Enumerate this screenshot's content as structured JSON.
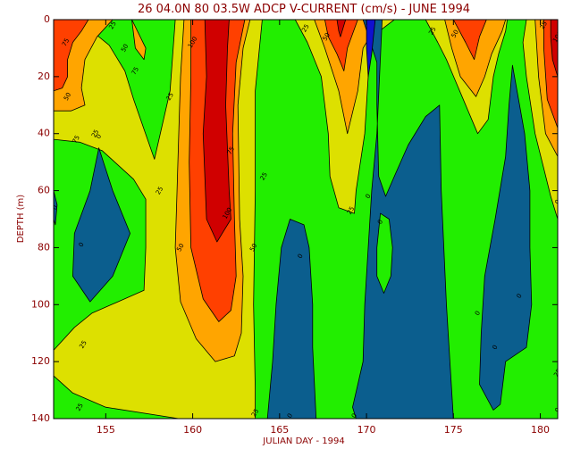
{
  "chart_data": {
    "type": "heatmap",
    "title": "26 04.0N 80 03.5W ADCP V-CURRENT (cm/s) - JUNE 1994",
    "xlabel": "JULIAN DAY - 1994",
    "ylabel": "DEPTH (m)",
    "xlim": [
      152,
      181
    ],
    "ylim": [
      140,
      0
    ],
    "x_ticks": [
      155,
      160,
      165,
      170,
      175,
      180
    ],
    "y_ticks": [
      0,
      20,
      40,
      60,
      80,
      100,
      120,
      140
    ],
    "grid": false,
    "contour_levels": [
      0,
      25,
      50,
      75,
      100
    ],
    "level_colors": {
      "below_0": "#0b5e8e",
      "0_25": "#22ee00",
      "25_50": "#dde000",
      "50_75": "#ffa500",
      "75_100": "#ff4000",
      "above_100": "#d00000",
      "strong_negative": "#1010d0"
    },
    "contour_labels": [
      {
        "text": "75",
        "x": 152.7,
        "y": 8
      },
      {
        "text": "50",
        "x": 152.8,
        "y": 27
      },
      {
        "text": "50",
        "x": 156.1,
        "y": 10
      },
      {
        "text": "25",
        "x": 155.4,
        "y": 2
      },
      {
        "text": "75",
        "x": 156.7,
        "y": 18
      },
      {
        "text": "25",
        "x": 158.7,
        "y": 27
      },
      {
        "text": "25",
        "x": 154.4,
        "y": 40
      },
      {
        "text": "75",
        "x": 153.3,
        "y": 42
      },
      {
        "text": "0",
        "x": 154.6,
        "y": 41
      },
      {
        "text": "25",
        "x": 158.1,
        "y": 60
      },
      {
        "text": "50",
        "x": 159.3,
        "y": 80
      },
      {
        "text": "0",
        "x": 153.6,
        "y": 79
      },
      {
        "text": "0",
        "x": 152.1,
        "y": 66
      },
      {
        "text": "25",
        "x": 153.7,
        "y": 114
      },
      {
        "text": "25",
        "x": 153.5,
        "y": 136
      },
      {
        "text": "100",
        "x": 160.0,
        "y": 8
      },
      {
        "text": "75",
        "x": 162.2,
        "y": 46
      },
      {
        "text": "100",
        "x": 162.0,
        "y": 68
      },
      {
        "text": "50",
        "x": 163.5,
        "y": 80
      },
      {
        "text": "25",
        "x": 164.1,
        "y": 55
      },
      {
        "text": "25",
        "x": 163.6,
        "y": 138
      },
      {
        "text": "0",
        "x": 165.6,
        "y": 139
      },
      {
        "text": "0",
        "x": 166.2,
        "y": 83
      },
      {
        "text": "50",
        "x": 167.7,
        "y": 6
      },
      {
        "text": "25",
        "x": 166.5,
        "y": 3
      },
      {
        "text": "25",
        "x": 169.1,
        "y": 67
      },
      {
        "text": "0",
        "x": 170.1,
        "y": 62
      },
      {
        "text": "0",
        "x": 170.8,
        "y": 71
      },
      {
        "text": "0",
        "x": 169.3,
        "y": 139
      },
      {
        "text": "25",
        "x": 173.8,
        "y": 4
      },
      {
        "text": "50",
        "x": 175.1,
        "y": 5
      },
      {
        "text": "0",
        "x": 176.4,
        "y": 103
      },
      {
        "text": "0",
        "x": 178.8,
        "y": 97
      },
      {
        "text": "0",
        "x": 177.4,
        "y": 115
      },
      {
        "text": "25",
        "x": 180.2,
        "y": 2
      },
      {
        "text": "100",
        "x": 181.0,
        "y": 6
      },
      {
        "text": "0",
        "x": 181.0,
        "y": 64
      },
      {
        "text": "25",
        "x": 181.0,
        "y": 124
      },
      {
        "text": "0",
        "x": 181.0,
        "y": 137
      }
    ],
    "regions": [
      {
        "level": "0_25",
        "points": [
          [
            152,
            0
          ],
          [
            181,
            0
          ],
          [
            181,
            140
          ],
          [
            152,
            140
          ]
        ]
      },
      {
        "level": "25_50",
        "points": [
          [
            152,
            0
          ],
          [
            153.4,
            0
          ],
          [
            155.2,
            9
          ],
          [
            156.1,
            18
          ],
          [
            156.6,
            28
          ],
          [
            157.8,
            49
          ],
          [
            158.7,
            25
          ],
          [
            159,
            0
          ],
          [
            164,
            0
          ],
          [
            163.6,
            25
          ],
          [
            163.6,
            60
          ],
          [
            163.5,
            100
          ],
          [
            163.6,
            130
          ],
          [
            163.6,
            140
          ],
          [
            159.2,
            140
          ],
          [
            155,
            136
          ],
          [
            153.1,
            131
          ],
          [
            152,
            125
          ],
          [
            152,
            116
          ],
          [
            153.2,
            108
          ],
          [
            154.2,
            103
          ],
          [
            155.7,
            99
          ],
          [
            157.2,
            95
          ],
          [
            157.3,
            80
          ],
          [
            157.3,
            63
          ],
          [
            156.6,
            56
          ],
          [
            154.8,
            46
          ],
          [
            153.5,
            43
          ],
          [
            152,
            42
          ]
        ]
      },
      {
        "level": "25_50",
        "points": [
          [
            165.9,
            0
          ],
          [
            171.6,
            0
          ],
          [
            170.1,
            7
          ],
          [
            170.1,
            20
          ],
          [
            169.9,
            40
          ],
          [
            169.4,
            60
          ],
          [
            169.3,
            68
          ],
          [
            168.4,
            66
          ],
          [
            167.9,
            55
          ],
          [
            167.8,
            40
          ],
          [
            167.4,
            20
          ],
          [
            166.6,
            8
          ]
        ]
      },
      {
        "level": "25_50",
        "points": [
          [
            173.4,
            0
          ],
          [
            175.8,
            0
          ],
          [
            178.1,
            0
          ],
          [
            178,
            4
          ],
          [
            177.6,
            12
          ],
          [
            177.3,
            20
          ],
          [
            177,
            35
          ],
          [
            176.4,
            40
          ],
          [
            175.5,
            27
          ],
          [
            174.6,
            14
          ],
          [
            174.1,
            8
          ]
        ]
      },
      {
        "level": "25_50",
        "points": [
          [
            179.2,
            0
          ],
          [
            181,
            0
          ],
          [
            181,
            70
          ],
          [
            180.6,
            62
          ],
          [
            179.7,
            40
          ],
          [
            179.2,
            20
          ],
          [
            179,
            8
          ]
        ]
      },
      {
        "level": "50_75",
        "points": [
          [
            152,
            0
          ],
          [
            155.4,
            0
          ],
          [
            154.5,
            6
          ],
          [
            153.8,
            14
          ],
          [
            153.6,
            24
          ],
          [
            153.8,
            30
          ],
          [
            153,
            32
          ],
          [
            152,
            32
          ]
        ]
      },
      {
        "level": "50_75",
        "points": [
          [
            156.5,
            0
          ],
          [
            157.3,
            10
          ],
          [
            157.2,
            14
          ],
          [
            156.7,
            10
          ]
        ]
      },
      {
        "level": "50_75",
        "points": [
          [
            159.5,
            0
          ],
          [
            163.3,
            0
          ],
          [
            162.9,
            10
          ],
          [
            162.6,
            30
          ],
          [
            162.7,
            70
          ],
          [
            162.9,
            90
          ],
          [
            162.8,
            110
          ],
          [
            162.4,
            118
          ],
          [
            161.3,
            120
          ],
          [
            160.2,
            112
          ],
          [
            159.3,
            99
          ],
          [
            159,
            80
          ],
          [
            159.1,
            60
          ],
          [
            159.2,
            40
          ],
          [
            159.3,
            20
          ]
        ]
      },
      {
        "level": "50_75",
        "points": [
          [
            167,
            0
          ],
          [
            170.8,
            0
          ],
          [
            169.8,
            10
          ],
          [
            169.5,
            25
          ],
          [
            168.9,
            40
          ],
          [
            168.4,
            25
          ],
          [
            167.6,
            10
          ]
        ]
      },
      {
        "level": "50_75",
        "points": [
          [
            174.5,
            0
          ],
          [
            178,
            0
          ],
          [
            177.8,
            4
          ],
          [
            177.2,
            12
          ],
          [
            176.8,
            20
          ],
          [
            176.3,
            27
          ],
          [
            175.4,
            20
          ],
          [
            174.9,
            10
          ]
        ]
      },
      {
        "level": "50_75",
        "points": [
          [
            179.7,
            0
          ],
          [
            181,
            0
          ],
          [
            181,
            48
          ],
          [
            180.3,
            40
          ],
          [
            179.9,
            20
          ]
        ]
      },
      {
        "level": "75_100",
        "points": [
          [
            152,
            0
          ],
          [
            154,
            0
          ],
          [
            153.6,
            4
          ],
          [
            153.1,
            8
          ],
          [
            152.8,
            14
          ],
          [
            152.8,
            20
          ],
          [
            152.5,
            24
          ],
          [
            152,
            25
          ]
        ]
      },
      {
        "level": "75_100",
        "points": [
          [
            159.9,
            0
          ],
          [
            163,
            0
          ],
          [
            162.5,
            15
          ],
          [
            162.3,
            40
          ],
          [
            162.4,
            70
          ],
          [
            162.5,
            90
          ],
          [
            162.2,
            102
          ],
          [
            161.5,
            106
          ],
          [
            160.6,
            98
          ],
          [
            159.9,
            80
          ],
          [
            159.8,
            50
          ],
          [
            159.9,
            20
          ]
        ]
      },
      {
        "level": "75_100",
        "points": [
          [
            167.6,
            0
          ],
          [
            169.5,
            0
          ],
          [
            168.9,
            10
          ],
          [
            168.7,
            18
          ],
          [
            168.3,
            12
          ],
          [
            167.8,
            6
          ]
        ]
      },
      {
        "level": "75_100",
        "points": [
          [
            175,
            0
          ],
          [
            176.9,
            0
          ],
          [
            176.5,
            6
          ],
          [
            176.2,
            14
          ],
          [
            175.7,
            8
          ]
        ]
      },
      {
        "level": "75_100",
        "points": [
          [
            180.2,
            0
          ],
          [
            181,
            0
          ],
          [
            181,
            38
          ],
          [
            180.4,
            28
          ],
          [
            180.2,
            10
          ]
        ]
      },
      {
        "level": "above_100",
        "points": [
          [
            160.7,
            0
          ],
          [
            162.1,
            0
          ],
          [
            162,
            10
          ],
          [
            161.9,
            30
          ],
          [
            162.1,
            60
          ],
          [
            162.2,
            70
          ],
          [
            161.4,
            78
          ],
          [
            160.8,
            70
          ],
          [
            160.6,
            40
          ],
          [
            160.8,
            20
          ]
        ]
      },
      {
        "level": "above_100",
        "points": [
          [
            168.3,
            0
          ],
          [
            168.8,
            0
          ],
          [
            168.5,
            6
          ],
          [
            168.4,
            4
          ]
        ]
      },
      {
        "level": "above_100",
        "points": [
          [
            180.6,
            0
          ],
          [
            181,
            0
          ],
          [
            181,
            20
          ],
          [
            180.7,
            14
          ],
          [
            180.6,
            6
          ]
        ]
      },
      {
        "level": "below_0",
        "points": [
          [
            154.6,
            45
          ],
          [
            155.4,
            60
          ],
          [
            156.4,
            75
          ],
          [
            155.4,
            90
          ],
          [
            154.1,
            99
          ],
          [
            153.1,
            90
          ],
          [
            153.2,
            75
          ],
          [
            154.1,
            60
          ]
        ]
      },
      {
        "level": "below_0",
        "points": [
          [
            152,
            60
          ],
          [
            152.2,
            65
          ],
          [
            152.1,
            72
          ],
          [
            152,
            70
          ]
        ]
      },
      {
        "level": "below_0",
        "points": [
          [
            165.6,
            70
          ],
          [
            166.4,
            72
          ],
          [
            166.7,
            80
          ],
          [
            166.9,
            100
          ],
          [
            166.9,
            115
          ],
          [
            167.1,
            140
          ],
          [
            164.3,
            140
          ],
          [
            164.6,
            120
          ],
          [
            164.8,
            100
          ],
          [
            165.1,
            80
          ]
        ]
      },
      {
        "level": "below_0",
        "points": [
          [
            169.8,
            0
          ],
          [
            170.9,
            0
          ],
          [
            170.6,
            40
          ],
          [
            170.3,
            60
          ],
          [
            170.1,
            80
          ],
          [
            169.9,
            100
          ],
          [
            169.8,
            120
          ],
          [
            169.2,
            136
          ],
          [
            169.4,
            140
          ],
          [
            175,
            140
          ],
          [
            174.8,
            120
          ],
          [
            174.6,
            100
          ],
          [
            174.3,
            60
          ],
          [
            174.2,
            30
          ],
          [
            173.4,
            34
          ],
          [
            172.4,
            44
          ],
          [
            171.6,
            55
          ],
          [
            171.1,
            62
          ],
          [
            170.7,
            55
          ],
          [
            170.6,
            30
          ],
          [
            170.6,
            15
          ]
        ]
      },
      {
        "level": "0_25",
        "points": [
          [
            170.8,
            68
          ],
          [
            171.3,
            70
          ],
          [
            171.5,
            80
          ],
          [
            171.4,
            90
          ],
          [
            171,
            96
          ],
          [
            170.6,
            90
          ],
          [
            170.6,
            80
          ]
        ]
      },
      {
        "level": "below_0",
        "points": [
          [
            178.4,
            16
          ],
          [
            179.1,
            40
          ],
          [
            179.4,
            60
          ],
          [
            179.4,
            80
          ],
          [
            179.5,
            100
          ],
          [
            179.2,
            115
          ],
          [
            178,
            120
          ],
          [
            177.7,
            135
          ],
          [
            177.3,
            137
          ],
          [
            176.5,
            128
          ],
          [
            176.6,
            110
          ],
          [
            176.8,
            90
          ],
          [
            177.4,
            70
          ],
          [
            178,
            48
          ],
          [
            178.2,
            30
          ]
        ]
      },
      {
        "level": "strong_negative",
        "points": [
          [
            170,
            0
          ],
          [
            170.5,
            0
          ],
          [
            170.3,
            12
          ],
          [
            170.1,
            20
          ],
          [
            170,
            10
          ]
        ]
      }
    ]
  }
}
